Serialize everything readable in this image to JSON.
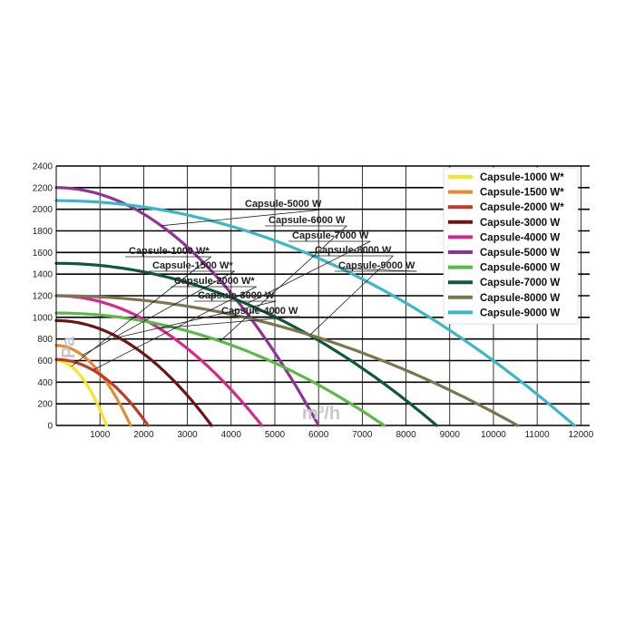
{
  "chart_data": {
    "type": "line",
    "title": "",
    "xlabel": "m³/h",
    "ylabel": "Pa",
    "xlim": [
      0,
      12200
    ],
    "ylim": [
      0,
      2400
    ],
    "x_ticks": [
      "1000",
      "2000",
      "3000",
      "4000",
      "5000",
      "6000",
      "7000",
      "8000",
      "9000",
      "10000",
      "11000",
      "12000"
    ],
    "y_ticks": [
      "0",
      "200",
      "400",
      "600",
      "800",
      "1000",
      "1200",
      "1400",
      "1600",
      "1800",
      "2000",
      "2200",
      "2400"
    ],
    "grid": true,
    "legend_position": "top-right",
    "series": [
      {
        "name": "Capsule-1000 W*",
        "color": "#f5e625",
        "p0": 600,
        "q0": 1150,
        "callout": "Capsule-1000 W*"
      },
      {
        "name": "Capsule-1500 W*",
        "color": "#e98a2c",
        "p0": 740,
        "q0": 1700,
        "callout": "Capsule-1500 W*"
      },
      {
        "name": "Capsule-2000 W*",
        "color": "#c0392b",
        "p0": 610,
        "q0": 2100,
        "callout": "Capsule-2000 W*"
      },
      {
        "name": "Capsule-3000 W",
        "color": "#6e1414",
        "p0": 970,
        "q0": 3550,
        "callout": "Capsule-3000 W"
      },
      {
        "name": "Capsule-4000 W",
        "color": "#d8268f",
        "p0": 1200,
        "q0": 4700,
        "callout": "Capsule-4000 W"
      },
      {
        "name": "Capsule-5000 W",
        "color": "#8e3494",
        "p0": 2200,
        "q0": 6000,
        "callout": "Capsule-5000 W"
      },
      {
        "name": "Capsule-6000 W",
        "color": "#5ab947",
        "p0": 1040,
        "q0": 7500,
        "callout": "Capsule-6000 W"
      },
      {
        "name": "Capsule-7000 W",
        "color": "#0e5a34",
        "p0": 1500,
        "q0": 8700,
        "callout": "Capsule-7000 W"
      },
      {
        "name": "Capsule-8000 W",
        "color": "#7d7450",
        "p0": 1200,
        "q0": 10550,
        "callout": "Capsule-8000 W"
      },
      {
        "name": "Capsule-9000 W",
        "color": "#3bb6c8",
        "p0": 2080,
        "q0": 11850,
        "callout": "Capsule-9000 W"
      }
    ]
  }
}
